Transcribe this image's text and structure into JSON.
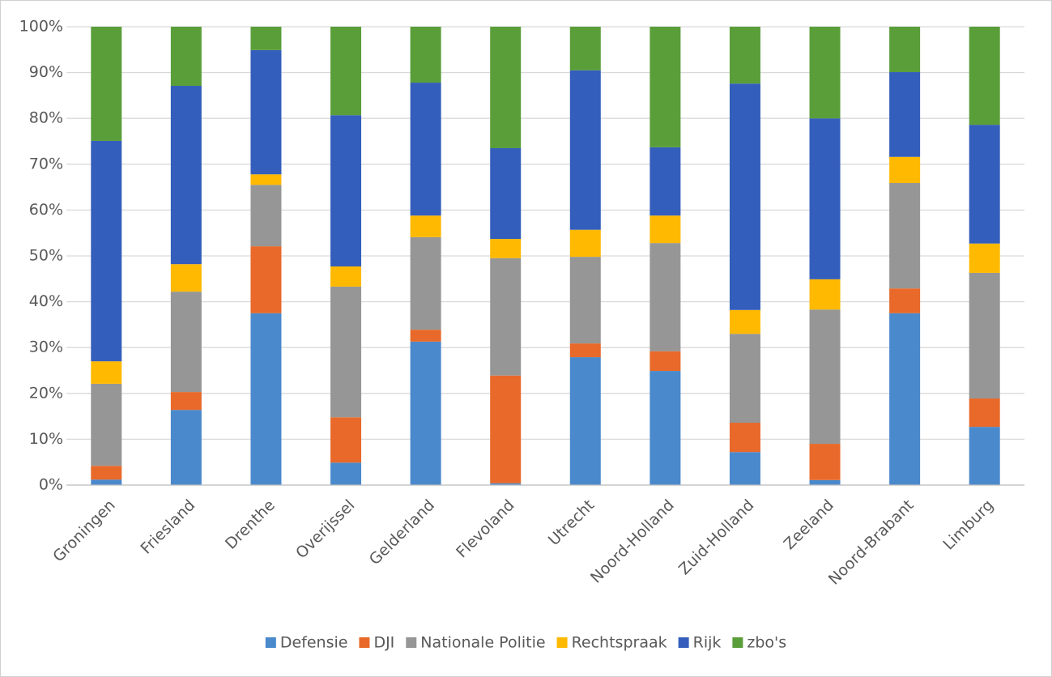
{
  "chart_data": {
    "type": "stacked_bar",
    "categories": [
      "Groningen",
      "Friesland",
      "Drenthe",
      "Overijssel",
      "Gelderland",
      "Flevoland",
      "Utrecht",
      "Noord-Holland",
      "Zuid-Holland",
      "Zeeland",
      "Noord-Brabant",
      "Limburg"
    ],
    "series": [
      {
        "name": "Defensie",
        "color": "#4a89cc",
        "values": [
          1.2,
          16.4,
          37.5,
          4.9,
          31.3,
          0.4,
          27.9,
          24.9,
          7.2,
          1.1,
          37.5,
          12.7
        ]
      },
      {
        "name": "DJI",
        "color": "#e8692a",
        "values": [
          3.0,
          3.9,
          14.6,
          9.9,
          2.6,
          23.5,
          3.0,
          4.3,
          6.4,
          7.9,
          5.4,
          6.2
        ]
      },
      {
        "name": "Nationale Politie",
        "color": "#969696",
        "values": [
          17.9,
          21.9,
          13.4,
          28.5,
          20.2,
          25.6,
          18.9,
          23.6,
          19.4,
          29.3,
          23.0,
          27.4
        ]
      },
      {
        "name": "Rechtspraak",
        "color": "#ffb900",
        "values": [
          4.9,
          6.0,
          2.3,
          4.4,
          4.7,
          4.2,
          5.9,
          6.0,
          5.2,
          6.6,
          5.7,
          6.4
        ]
      },
      {
        "name": "Rijk",
        "color": "#345ebb",
        "values": [
          48.1,
          38.9,
          27.1,
          33.0,
          29.0,
          19.8,
          34.8,
          14.9,
          49.4,
          35.1,
          18.5,
          25.9
        ]
      },
      {
        "name": "zbo's",
        "color": "#5a9e3a",
        "values": [
          24.9,
          12.9,
          5.1,
          19.3,
          12.2,
          26.5,
          9.5,
          26.3,
          12.4,
          20.0,
          9.9,
          21.4
        ]
      }
    ],
    "ylim": [
      0,
      100
    ],
    "yticks": [
      {
        "value": 0,
        "label": "0%"
      },
      {
        "value": 10,
        "label": "10%"
      },
      {
        "value": 20,
        "label": "20%"
      },
      {
        "value": 30,
        "label": "30%"
      },
      {
        "value": 40,
        "label": "40%"
      },
      {
        "value": 50,
        "label": "50%"
      },
      {
        "value": 60,
        "label": "60%"
      },
      {
        "value": 70,
        "label": "70%"
      },
      {
        "value": 80,
        "label": "80%"
      },
      {
        "value": 90,
        "label": "90%"
      },
      {
        "value": 100,
        "label": "100%"
      }
    ],
    "grid": true,
    "legend": "bottom"
  }
}
